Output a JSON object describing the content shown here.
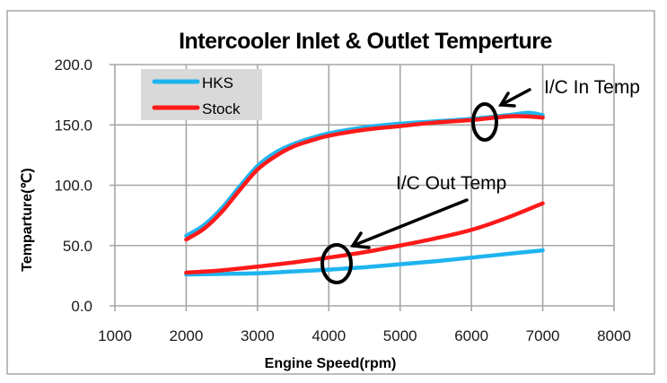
{
  "chart_data": {
    "type": "line",
    "title": "Intercooler Inlet & Outlet Temperture",
    "xlabel": "Engine Speed(rpm)",
    "ylabel": "Temparture(℃)",
    "xlim": [
      1000,
      8000
    ],
    "ylim": [
      0,
      200
    ],
    "x_ticks": [
      1000,
      2000,
      3000,
      4000,
      5000,
      6000,
      7000,
      8000
    ],
    "x_tick_labels": [
      "1000",
      "2000",
      "3000",
      "4000",
      "5000",
      "6000",
      "7000",
      "8000"
    ],
    "y_ticks": [
      0,
      50,
      100,
      150,
      200
    ],
    "y_tick_labels": [
      "0.0",
      "50.0",
      "100.0",
      "150.0",
      "200.0"
    ],
    "grid": true,
    "legend": {
      "placement": "top-left",
      "entries": [
        {
          "name": "HKS",
          "color": "#1fb4ef"
        },
        {
          "name": "Stock",
          "color": "#ff1a1a"
        }
      ]
    },
    "series": [
      {
        "name": "HKS",
        "group": "I/C In Temp",
        "color": "#1fb4ef",
        "x": [
          2000,
          2250,
          2500,
          2750,
          3000,
          3250,
          3500,
          3750,
          4000,
          4500,
          5000,
          5500,
          6000,
          6500,
          6800,
          7000
        ],
        "y": [
          58,
          67,
          81,
          99,
          116,
          127,
          134,
          139,
          143,
          148,
          151,
          153,
          155,
          158,
          160,
          158
        ]
      },
      {
        "name": "Stock",
        "group": "I/C In Temp",
        "color": "#ff1a1a",
        "x": [
          2000,
          2250,
          2500,
          2750,
          3000,
          3250,
          3500,
          3750,
          4000,
          4500,
          5000,
          5500,
          6000,
          6500,
          6800,
          7000
        ],
        "y": [
          55,
          64,
          78,
          96,
          113,
          124,
          132,
          137,
          141,
          146,
          149,
          152,
          154,
          157,
          157,
          156
        ]
      },
      {
        "name": "HKS",
        "group": "I/C Out Temp",
        "color": "#1fb4ef",
        "x": [
          2000,
          2500,
          3000,
          3500,
          4000,
          4500,
          5000,
          5500,
          6000,
          6500,
          7000
        ],
        "y": [
          26,
          26.5,
          27,
          28.5,
          30,
          32,
          34.5,
          37,
          40,
          43,
          46
        ]
      },
      {
        "name": "Stock",
        "group": "I/C Out Temp",
        "color": "#ff1a1a",
        "x": [
          2000,
          2500,
          3000,
          3500,
          4000,
          4500,
          5000,
          5500,
          6000,
          6500,
          7000
        ],
        "y": [
          27.5,
          29.5,
          32.5,
          36,
          40,
          44.5,
          50,
          56,
          63,
          73,
          85
        ]
      }
    ],
    "annotations": [
      {
        "text": "I/C In Temp",
        "points_to": {
          "x": 6150,
          "y": 155
        }
      },
      {
        "text": "I/C Out Temp",
        "points_to": {
          "x": 4100,
          "y": 35
        }
      }
    ]
  }
}
